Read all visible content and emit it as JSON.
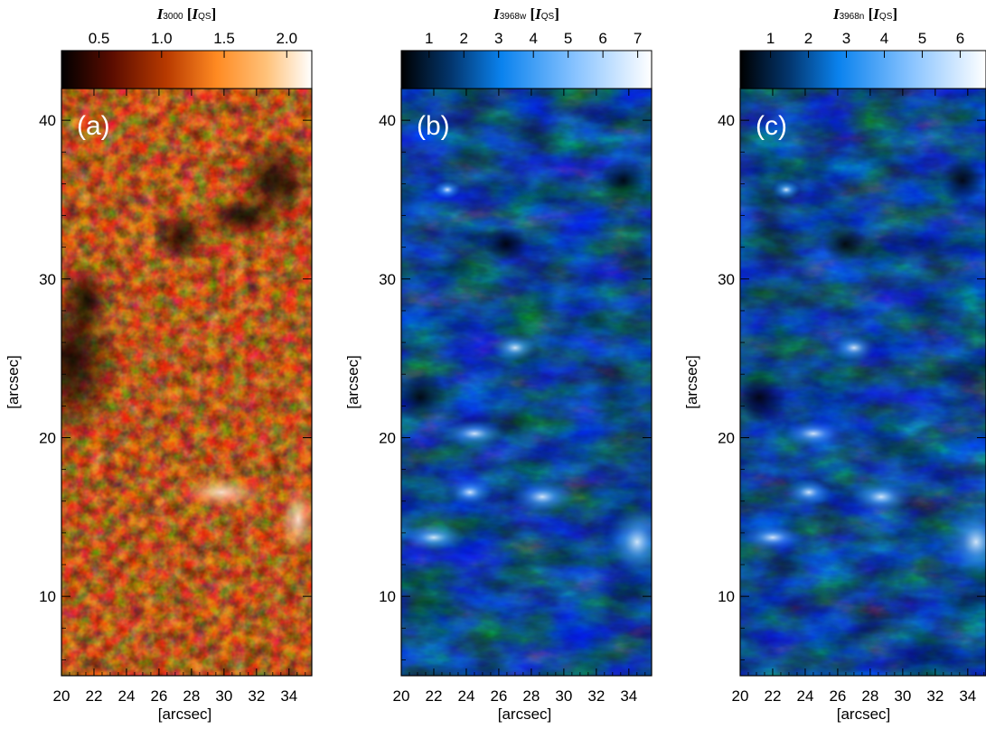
{
  "panels": [
    {
      "id": "a",
      "label": "(a)",
      "title_main": "I",
      "title_sub": "3000",
      "title_units": "[I",
      "title_units_sub": "QS",
      "title_close": "]",
      "colormap": "heat",
      "colorbar_ticks": [
        "0.5",
        "1.0",
        "1.5",
        "2.0"
      ],
      "colorbar_tick_values": [
        0.5,
        1.0,
        1.5,
        2.0
      ],
      "colorbar_range": [
        0.2,
        2.2
      ]
    },
    {
      "id": "b",
      "label": "(b)",
      "title_main": "I",
      "title_sub": "3968w",
      "title_units": "[I",
      "title_units_sub": "QS",
      "title_close": "]",
      "colormap": "blue",
      "colorbar_ticks": [
        "1",
        "2",
        "3",
        "4",
        "5",
        "6",
        "7"
      ],
      "colorbar_tick_values": [
        1,
        2,
        3,
        4,
        5,
        6,
        7
      ],
      "colorbar_range": [
        0.2,
        7.4
      ]
    },
    {
      "id": "c",
      "label": "(c)",
      "title_main": "I",
      "title_sub": "3968n",
      "title_units": "[I",
      "title_units_sub": "QS",
      "title_close": "]",
      "colormap": "blue",
      "colorbar_ticks": [
        "1",
        "2",
        "3",
        "4",
        "5",
        "6"
      ],
      "colorbar_tick_values": [
        1,
        2,
        3,
        4,
        5,
        6
      ],
      "colorbar_range": [
        0.2,
        6.8
      ]
    }
  ],
  "x_axis": {
    "label": "[arcsec]",
    "ticks": [
      "20",
      "22",
      "24",
      "26",
      "28",
      "30",
      "32",
      "34"
    ],
    "tick_values": [
      20,
      22,
      24,
      26,
      28,
      30,
      32,
      34
    ],
    "range": [
      20,
      35.4
    ]
  },
  "y_axis": {
    "label": "[arcsec]",
    "ticks": [
      "10",
      "20",
      "30",
      "40"
    ],
    "tick_values": [
      10,
      20,
      30,
      40
    ],
    "range": [
      5,
      42
    ]
  },
  "colors": {
    "heat_dark": "#150200",
    "heat_mid": "#d8600c",
    "heat_bright": "#ffffff",
    "blue_dark": "#020a18",
    "blue_mid": "#0a74d8",
    "blue_bright": "#ffffff"
  }
}
